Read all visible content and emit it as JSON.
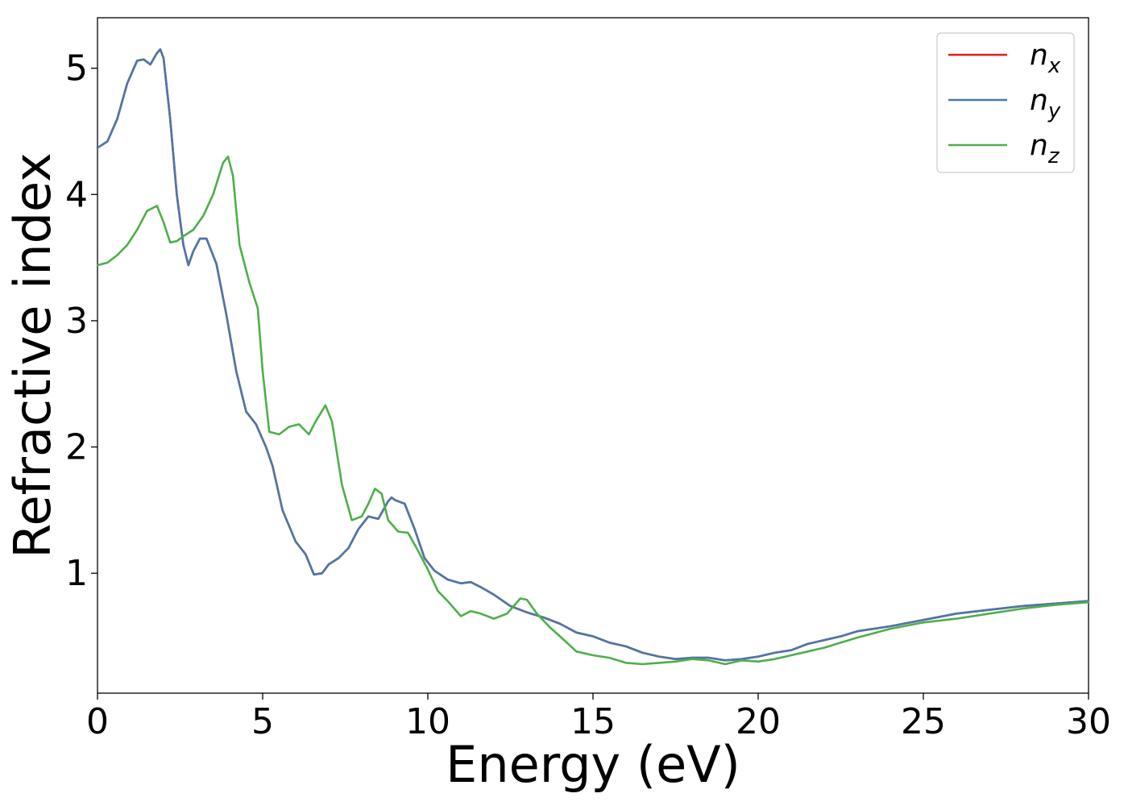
{
  "chart_data": {
    "type": "line",
    "xlabel": "Energy (eV)",
    "ylabel": "Refractive index",
    "xlim": [
      0,
      30
    ],
    "ylim": [
      0.05,
      5.4
    ],
    "xticks": [
      0,
      5,
      10,
      15,
      20,
      25,
      30
    ],
    "yticks": [
      1,
      2,
      3,
      4,
      5
    ],
    "grid": false,
    "legend_position": "top-right",
    "series": [
      {
        "name": "n_x",
        "legend_base": "n",
        "legend_sub": "x",
        "color": "#e41a1c",
        "x": [
          0,
          0.3,
          0.6,
          0.9,
          1.2,
          1.4,
          1.6,
          1.8,
          1.9,
          2.0,
          2.2,
          2.4,
          2.6,
          2.75,
          2.9,
          3.1,
          3.3,
          3.6,
          3.9,
          4.2,
          4.5,
          4.8,
          5.1,
          5.3,
          5.6,
          6.0,
          6.3,
          6.55,
          6.8,
          7.0,
          7.3,
          7.6,
          7.9,
          8.2,
          8.5,
          8.8,
          8.9,
          9.0,
          9.3,
          9.6,
          9.9,
          10.2,
          10.6,
          11.0,
          11.3,
          11.6,
          12.0,
          12.5,
          13.0,
          13.5,
          14.0,
          14.5,
          15.0,
          15.5,
          16.0,
          16.5,
          17.0,
          17.5,
          18.0,
          18.5,
          19.0,
          19.5,
          20.0,
          20.5,
          21.0,
          21.5,
          22.0,
          22.5,
          23.0,
          24.0,
          25.0,
          26.0,
          27.0,
          28.0,
          29.0,
          30.0
        ],
        "values": [
          4.37,
          4.42,
          4.6,
          4.88,
          5.06,
          5.07,
          5.03,
          5.12,
          5.15,
          5.08,
          4.6,
          4.0,
          3.6,
          3.44,
          3.55,
          3.65,
          3.65,
          3.45,
          3.05,
          2.6,
          2.28,
          2.18,
          2.0,
          1.85,
          1.5,
          1.25,
          1.15,
          0.99,
          1.0,
          1.07,
          1.12,
          1.2,
          1.35,
          1.45,
          1.43,
          1.57,
          1.6,
          1.58,
          1.55,
          1.35,
          1.12,
          1.02,
          0.95,
          0.92,
          0.93,
          0.89,
          0.83,
          0.74,
          0.69,
          0.65,
          0.6,
          0.53,
          0.5,
          0.45,
          0.42,
          0.37,
          0.34,
          0.32,
          0.33,
          0.33,
          0.31,
          0.32,
          0.34,
          0.37,
          0.39,
          0.44,
          0.47,
          0.5,
          0.54,
          0.58,
          0.63,
          0.68,
          0.71,
          0.74,
          0.76,
          0.78
        ]
      },
      {
        "name": "n_y",
        "legend_base": "n",
        "legend_sub": "y",
        "color": "#4a78a8",
        "x": [
          0,
          0.3,
          0.6,
          0.9,
          1.2,
          1.4,
          1.6,
          1.8,
          1.9,
          2.0,
          2.2,
          2.4,
          2.6,
          2.75,
          2.9,
          3.1,
          3.3,
          3.6,
          3.9,
          4.2,
          4.5,
          4.8,
          5.1,
          5.3,
          5.6,
          6.0,
          6.3,
          6.55,
          6.8,
          7.0,
          7.3,
          7.6,
          7.9,
          8.2,
          8.5,
          8.8,
          8.9,
          9.0,
          9.3,
          9.6,
          9.9,
          10.2,
          10.6,
          11.0,
          11.3,
          11.6,
          12.0,
          12.5,
          13.0,
          13.5,
          14.0,
          14.5,
          15.0,
          15.5,
          16.0,
          16.5,
          17.0,
          17.5,
          18.0,
          18.5,
          19.0,
          19.5,
          20.0,
          20.5,
          21.0,
          21.5,
          22.0,
          22.5,
          23.0,
          24.0,
          25.0,
          26.0,
          27.0,
          28.0,
          29.0,
          30.0
        ],
        "values": [
          4.37,
          4.42,
          4.6,
          4.88,
          5.06,
          5.07,
          5.03,
          5.12,
          5.15,
          5.08,
          4.6,
          4.0,
          3.6,
          3.44,
          3.55,
          3.65,
          3.65,
          3.45,
          3.05,
          2.6,
          2.28,
          2.18,
          2.0,
          1.85,
          1.5,
          1.25,
          1.15,
          0.99,
          1.0,
          1.07,
          1.12,
          1.2,
          1.35,
          1.45,
          1.43,
          1.57,
          1.6,
          1.58,
          1.55,
          1.35,
          1.12,
          1.02,
          0.95,
          0.92,
          0.93,
          0.89,
          0.83,
          0.74,
          0.69,
          0.65,
          0.6,
          0.53,
          0.5,
          0.45,
          0.42,
          0.37,
          0.34,
          0.32,
          0.33,
          0.33,
          0.31,
          0.32,
          0.34,
          0.37,
          0.39,
          0.44,
          0.47,
          0.5,
          0.54,
          0.58,
          0.63,
          0.68,
          0.71,
          0.74,
          0.76,
          0.78
        ]
      },
      {
        "name": "n_z",
        "legend_base": "n",
        "legend_sub": "z",
        "color": "#4daf4a",
        "x": [
          0,
          0.3,
          0.6,
          0.9,
          1.2,
          1.5,
          1.8,
          2.0,
          2.2,
          2.4,
          2.6,
          2.9,
          3.2,
          3.5,
          3.8,
          3.95,
          4.1,
          4.3,
          4.6,
          4.85,
          5.0,
          5.2,
          5.5,
          5.8,
          6.1,
          6.4,
          6.6,
          6.9,
          7.1,
          7.4,
          7.7,
          8.0,
          8.2,
          8.4,
          8.6,
          8.8,
          9.1,
          9.4,
          9.7,
          10.0,
          10.3,
          10.6,
          11.0,
          11.3,
          11.6,
          12.0,
          12.4,
          12.8,
          13.0,
          13.3,
          13.7,
          14.0,
          14.5,
          15.0,
          15.5,
          16.0,
          16.5,
          17.0,
          17.5,
          18.0,
          18.5,
          19.0,
          19.5,
          20.0,
          20.5,
          21.0,
          21.5,
          22.0,
          22.5,
          23.0,
          24.0,
          25.0,
          26.0,
          27.0,
          28.0,
          29.0,
          30.0
        ],
        "values": [
          3.44,
          3.46,
          3.52,
          3.6,
          3.72,
          3.87,
          3.91,
          3.78,
          3.62,
          3.63,
          3.67,
          3.72,
          3.83,
          4.0,
          4.25,
          4.3,
          4.15,
          3.6,
          3.3,
          3.1,
          2.6,
          2.12,
          2.1,
          2.16,
          2.18,
          2.1,
          2.2,
          2.33,
          2.2,
          1.7,
          1.42,
          1.45,
          1.55,
          1.67,
          1.63,
          1.42,
          1.33,
          1.32,
          1.18,
          1.03,
          0.86,
          0.78,
          0.66,
          0.7,
          0.68,
          0.64,
          0.68,
          0.8,
          0.79,
          0.68,
          0.57,
          0.5,
          0.38,
          0.35,
          0.33,
          0.29,
          0.28,
          0.29,
          0.3,
          0.32,
          0.31,
          0.28,
          0.31,
          0.3,
          0.32,
          0.35,
          0.38,
          0.41,
          0.45,
          0.49,
          0.56,
          0.61,
          0.64,
          0.68,
          0.72,
          0.75,
          0.77
        ]
      }
    ]
  }
}
